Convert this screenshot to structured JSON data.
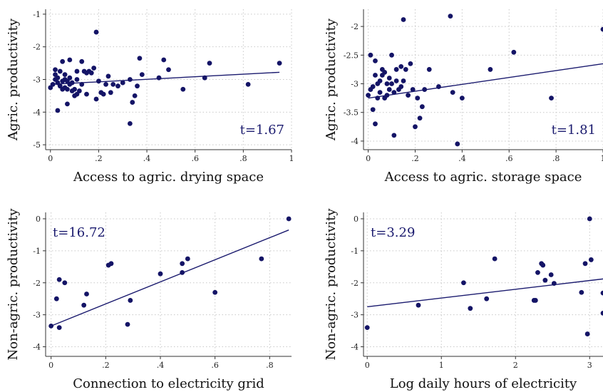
{
  "colors": {
    "points": "#141466",
    "fit_line": "#1a1a6e"
  },
  "chart_data": [
    {
      "type": "scatter",
      "xlabel": "Access to agric. drying space",
      "ylabel": "Agric. productivity",
      "annotation": "t=1.67",
      "xlim": [
        -0.02,
        1.0
      ],
      "ylim": [
        -5.15,
        -0.85
      ],
      "xticks": [
        0,
        0.2,
        0.4,
        0.6,
        0.8,
        1
      ],
      "xtick_labels": [
        "0",
        ".2",
        ".4",
        ".6",
        ".8",
        "1"
      ],
      "yticks": [
        -5,
        -4,
        -3,
        -2,
        -1
      ],
      "ytick_labels": [
        "-5",
        "-4",
        "-3",
        "-2",
        "-1"
      ],
      "grid": true,
      "fit": [
        [
          0,
          -3.15
        ],
        [
          0.95,
          -2.78
        ]
      ],
      "points": [
        [
          0.19,
          -1.55
        ],
        [
          0.0,
          -3.25
        ],
        [
          0.01,
          -3.15
        ],
        [
          0.02,
          -3.0
        ],
        [
          0.02,
          -2.85
        ],
        [
          0.02,
          -2.7
        ],
        [
          0.03,
          -3.1
        ],
        [
          0.03,
          -2.95
        ],
        [
          0.03,
          -3.95
        ],
        [
          0.04,
          -2.75
        ],
        [
          0.04,
          -3.2
        ],
        [
          0.05,
          -3.05
        ],
        [
          0.05,
          -3.3
        ],
        [
          0.05,
          -2.45
        ],
        [
          0.06,
          -3.25
        ],
        [
          0.06,
          -3.0
        ],
        [
          0.06,
          -2.85
        ],
        [
          0.07,
          -3.05
        ],
        [
          0.07,
          -3.3
        ],
        [
          0.07,
          -3.75
        ],
        [
          0.08,
          -2.4
        ],
        [
          0.08,
          -3.15
        ],
        [
          0.08,
          -2.95
        ],
        [
          0.09,
          -3.35
        ],
        [
          0.09,
          -3.1
        ],
        [
          0.1,
          -3.5
        ],
        [
          0.1,
          -3.3
        ],
        [
          0.11,
          -3.0
        ],
        [
          0.11,
          -2.75
        ],
        [
          0.11,
          -3.45
        ],
        [
          0.12,
          -3.35
        ],
        [
          0.13,
          -3.15
        ],
        [
          0.13,
          -2.45
        ],
        [
          0.14,
          -2.75
        ],
        [
          0.15,
          -3.45
        ],
        [
          0.15,
          -2.8
        ],
        [
          0.16,
          -2.75
        ],
        [
          0.17,
          -2.8
        ],
        [
          0.18,
          -2.65
        ],
        [
          0.19,
          -3.6
        ],
        [
          0.2,
          -3.05
        ],
        [
          0.21,
          -3.4
        ],
        [
          0.22,
          -3.45
        ],
        [
          0.23,
          -3.15
        ],
        [
          0.24,
          -2.9
        ],
        [
          0.25,
          -3.4
        ],
        [
          0.26,
          -3.15
        ],
        [
          0.28,
          -3.2
        ],
        [
          0.3,
          -3.1
        ],
        [
          0.33,
          -3.0
        ],
        [
          0.33,
          -4.35
        ],
        [
          0.34,
          -3.7
        ],
        [
          0.35,
          -3.5
        ],
        [
          0.36,
          -3.2
        ],
        [
          0.37,
          -2.35
        ],
        [
          0.38,
          -2.85
        ],
        [
          0.45,
          -2.95
        ],
        [
          0.47,
          -2.4
        ],
        [
          0.49,
          -2.7
        ],
        [
          0.55,
          -3.3
        ],
        [
          0.64,
          -2.95
        ],
        [
          0.66,
          -2.5
        ],
        [
          0.82,
          -3.15
        ],
        [
          0.95,
          -2.5
        ]
      ]
    },
    {
      "type": "scatter",
      "xlabel": "Access to agric. storage space",
      "ylabel": "Agric. productivity",
      "annotation": "t=1.81",
      "xlim": [
        -0.02,
        1.0
      ],
      "ylim": [
        -4.15,
        -1.7
      ],
      "xticks": [
        0,
        0.2,
        0.4,
        0.6,
        0.8,
        1
      ],
      "xtick_labels": [
        "0",
        ".2",
        ".4",
        ".6",
        ".8",
        "1"
      ],
      "yticks": [
        -4,
        -3.5,
        -3,
        -2.5,
        -2
      ],
      "ytick_labels": [
        "-4",
        "-3.5",
        "-3",
        "-2.5",
        "-2"
      ],
      "grid": true,
      "fit": [
        [
          0,
          -3.25
        ],
        [
          1.0,
          -2.65
        ]
      ],
      "points": [
        [
          0.35,
          -1.82
        ],
        [
          0.15,
          -1.88
        ],
        [
          1.0,
          -2.05
        ],
        [
          0.0,
          -3.2
        ],
        [
          0.01,
          -2.5
        ],
        [
          0.01,
          -3.1
        ],
        [
          0.02,
          -3.45
        ],
        [
          0.02,
          -3.05
        ],
        [
          0.03,
          -2.6
        ],
        [
          0.03,
          -2.85
        ],
        [
          0.03,
          -3.7
        ],
        [
          0.04,
          -3.25
        ],
        [
          0.04,
          -3.0
        ],
        [
          0.05,
          -2.95
        ],
        [
          0.05,
          -3.15
        ],
        [
          0.06,
          -2.75
        ],
        [
          0.06,
          -2.85
        ],
        [
          0.07,
          -3.25
        ],
        [
          0.07,
          -2.8
        ],
        [
          0.08,
          -3.0
        ],
        [
          0.08,
          -3.2
        ],
        [
          0.09,
          -2.9
        ],
        [
          0.09,
          -3.1
        ],
        [
          0.1,
          -2.5
        ],
        [
          0.1,
          -3.0
        ],
        [
          0.11,
          -3.9
        ],
        [
          0.11,
          -3.15
        ],
        [
          0.12,
          -2.95
        ],
        [
          0.12,
          -2.75
        ],
        [
          0.13,
          -3.1
        ],
        [
          0.14,
          -2.7
        ],
        [
          0.14,
          -3.05
        ],
        [
          0.15,
          -2.95
        ],
        [
          0.16,
          -2.75
        ],
        [
          0.17,
          -3.2
        ],
        [
          0.18,
          -2.65
        ],
        [
          0.19,
          -3.1
        ],
        [
          0.2,
          -3.75
        ],
        [
          0.21,
          -3.25
        ],
        [
          0.22,
          -3.6
        ],
        [
          0.23,
          -3.4
        ],
        [
          0.24,
          -3.1
        ],
        [
          0.26,
          -2.75
        ],
        [
          0.3,
          -3.05
        ],
        [
          0.36,
          -3.15
        ],
        [
          0.38,
          -4.05
        ],
        [
          0.4,
          -3.25
        ],
        [
          0.52,
          -2.75
        ],
        [
          0.62,
          -2.45
        ],
        [
          0.78,
          -3.25
        ]
      ]
    },
    {
      "type": "scatter",
      "xlabel": "Connection to electricity grid",
      "ylabel": "Non-agric. productivity",
      "annotation": "t=16.72",
      "xlim": [
        -0.02,
        0.88
      ],
      "ylim": [
        -4.3,
        0.2
      ],
      "xticks": [
        0,
        0.2,
        0.4,
        0.6,
        0.8
      ],
      "xtick_labels": [
        "0",
        ".2",
        ".4",
        ".6",
        ".8"
      ],
      "yticks": [
        -4,
        -3,
        -2,
        -1,
        0
      ],
      "ytick_labels": [
        "-4",
        "-3",
        "-2",
        "-1",
        "0"
      ],
      "grid": true,
      "fit": [
        [
          0,
          -3.35
        ],
        [
          0.87,
          -0.35
        ]
      ],
      "points": [
        [
          0.0,
          -3.35
        ],
        [
          0.02,
          -2.5
        ],
        [
          0.03,
          -1.9
        ],
        [
          0.03,
          -3.4
        ],
        [
          0.05,
          -2.0
        ],
        [
          0.12,
          -2.7
        ],
        [
          0.13,
          -2.35
        ],
        [
          0.21,
          -1.45
        ],
        [
          0.22,
          -1.4
        ],
        [
          0.28,
          -3.3
        ],
        [
          0.29,
          -2.55
        ],
        [
          0.4,
          -1.72
        ],
        [
          0.48,
          -1.4
        ],
        [
          0.48,
          -1.68
        ],
        [
          0.5,
          -1.25
        ],
        [
          0.6,
          -2.3
        ],
        [
          0.77,
          -1.25
        ],
        [
          0.87,
          0.0
        ]
      ]
    },
    {
      "type": "scatter",
      "xlabel": "Log daily hours of electricity",
      "ylabel": "Non-agric. productivity",
      "annotation": "t=3.29",
      "xlim": [
        -0.05,
        3.18
      ],
      "ylim": [
        -4.3,
        0.2
      ],
      "xticks": [
        0,
        1,
        2,
        3
      ],
      "xtick_labels": [
        "0",
        "1",
        "2",
        "3"
      ],
      "yticks": [
        -4,
        -3,
        -2,
        -1,
        0
      ],
      "ytick_labels": [
        "-4",
        "-3",
        "-2",
        "-1",
        "0"
      ],
      "grid": true,
      "fit": [
        [
          0,
          -2.75
        ],
        [
          3.18,
          -1.88
        ]
      ],
      "points": [
        [
          0.0,
          -3.4
        ],
        [
          0.69,
          -2.7
        ],
        [
          1.3,
          -2.0
        ],
        [
          1.39,
          -2.8
        ],
        [
          1.61,
          -2.5
        ],
        [
          1.72,
          -1.25
        ],
        [
          2.25,
          -2.55
        ],
        [
          2.27,
          -2.55
        ],
        [
          2.3,
          -1.68
        ],
        [
          2.35,
          -1.4
        ],
        [
          2.37,
          -1.45
        ],
        [
          2.4,
          -1.92
        ],
        [
          2.48,
          -1.75
        ],
        [
          2.52,
          -2.02
        ],
        [
          2.89,
          -2.3
        ],
        [
          2.94,
          -1.4
        ],
        [
          2.97,
          -3.6
        ],
        [
          3.0,
          0.0
        ],
        [
          3.02,
          -1.28
        ],
        [
          3.18,
          -2.32
        ],
        [
          3.18,
          -2.95
        ]
      ]
    }
  ]
}
